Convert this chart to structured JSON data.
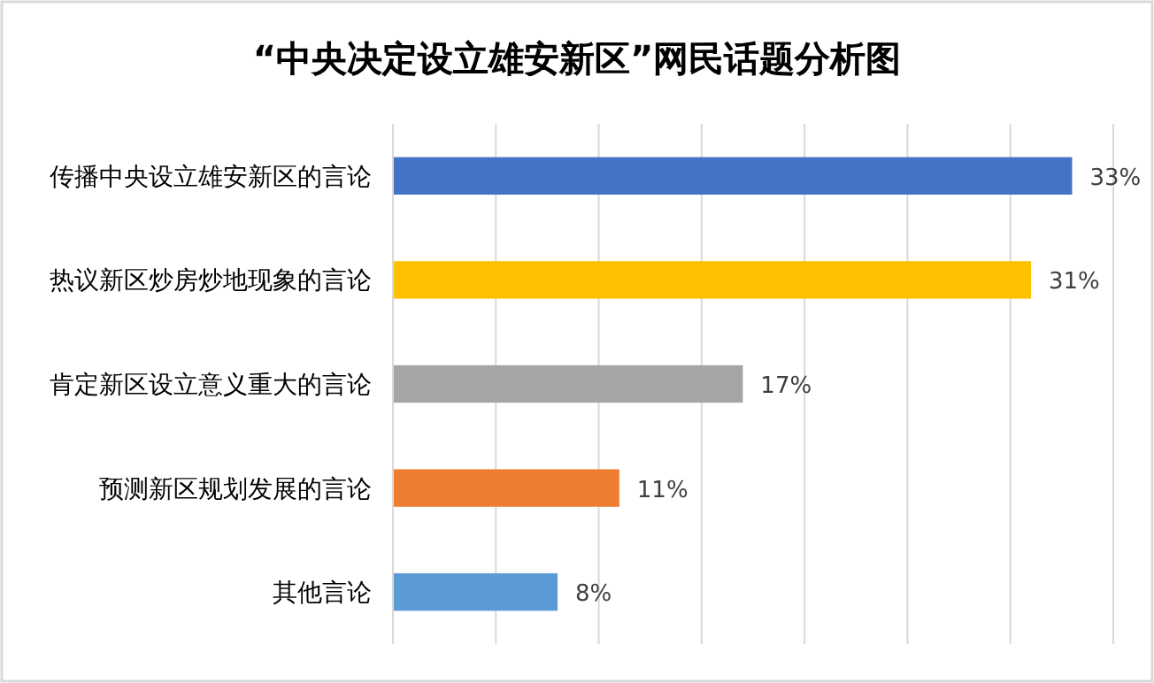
{
  "chart_data": {
    "type": "bar",
    "orientation": "horizontal",
    "title": "“中央决定设立雄安新区”网民话题分析图",
    "categories": [
      "传播中央设立雄安新区的言论",
      "热议新区炒房炒地现象的言论",
      "肯定新区设立意义重大的言论",
      "预测新区规划发展的言论",
      "其他言论"
    ],
    "values": [
      33,
      31,
      17,
      11,
      8
    ],
    "colors": [
      "#4472c4",
      "#ffc000",
      "#a5a5a5",
      "#ed7d31",
      "#5b9bd5"
    ],
    "value_labels": [
      "33%",
      "31%",
      "17%",
      "11%",
      "8%"
    ],
    "xlim": [
      0,
      35
    ],
    "xticks": [
      {
        "value": 0,
        "label": null
      },
      {
        "value": 5,
        "label": null
      },
      {
        "value": 10,
        "label": null
      },
      {
        "value": 15,
        "label": null
      },
      {
        "value": 20,
        "label": null
      },
      {
        "value": 25,
        "label": null
      },
      {
        "value": 30,
        "label": null
      },
      {
        "value": 35,
        "label": null
      }
    ],
    "grid": "x",
    "tick_labels": "y"
  }
}
